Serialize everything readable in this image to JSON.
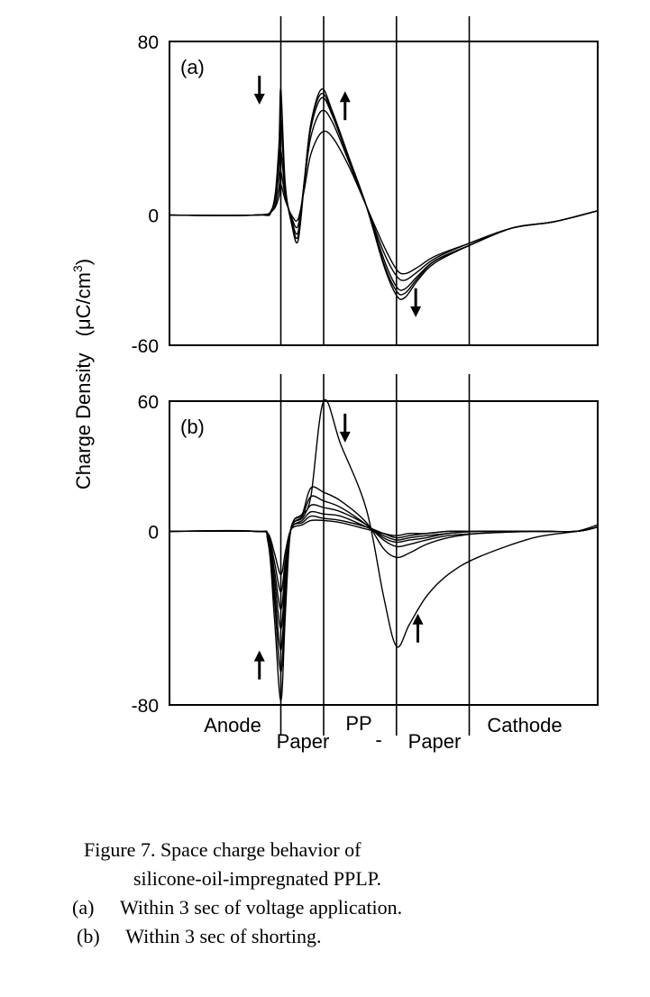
{
  "ylabel": "Charge Density",
  "yunit_prefix": "(μC/cm",
  "yunit_exp": "3",
  "yunit_suffix": ")",
  "region_labels": {
    "anode": "Anode",
    "paper1": "Paper",
    "pp": "PP",
    "dash": "-",
    "paper2": "Paper",
    "cathode": "Cathode"
  },
  "caption": {
    "line1": "Figure 7.   Space charge behavior of",
    "line2": "silicone-oil-impregnated PPLP.",
    "line3_tag": "(a)",
    "line3_text": "Within 3 sec of voltage application.",
    "line4_tag": "(b)",
    "line4_text": "Within 3 sec of shorting."
  },
  "chart_data": [
    {
      "type": "line",
      "panel": "(a)",
      "ylim": [
        -60,
        80
      ],
      "yticks": [
        "80",
        "0",
        "-60"
      ],
      "xlim": [
        0,
        1
      ],
      "x_boundaries": [
        0.26,
        0.36,
        0.53,
        0.7
      ],
      "arrows": [
        {
          "x": 0.21,
          "y": 58,
          "dir": "down"
        },
        {
          "x": 0.41,
          "y": 50,
          "dir": "up"
        },
        {
          "x": 0.575,
          "y": -40,
          "dir": "down"
        }
      ],
      "series": [
        {
          "x": [
            0,
            0.2,
            0.24,
            0.255,
            0.26,
            0.27,
            0.285,
            0.3,
            0.315,
            0.33,
            0.355,
            0.38,
            0.42,
            0.46,
            0.5,
            0.53,
            0.55,
            0.58,
            0.62,
            0.7,
            0.8,
            0.9,
            1.0
          ],
          "values": [
            0,
            0,
            3,
            30,
            58,
            15,
            -4,
            -12,
            15,
            42,
            58,
            48,
            26,
            4,
            -23,
            -37,
            -38,
            -30,
            -22,
            -14,
            -6,
            -3,
            2
          ]
        },
        {
          "x": [
            0,
            0.2,
            0.24,
            0.255,
            0.26,
            0.27,
            0.285,
            0.3,
            0.315,
            0.33,
            0.355,
            0.38,
            0.42,
            0.46,
            0.5,
            0.53,
            0.55,
            0.58,
            0.62,
            0.7,
            0.8,
            0.9,
            1.0
          ],
          "values": [
            0,
            0,
            3,
            25,
            44,
            13,
            -3,
            -10,
            16,
            42,
            56,
            47,
            26,
            4,
            -22,
            -35,
            -36,
            -29,
            -21,
            -14,
            -6,
            -3,
            2
          ]
        },
        {
          "x": [
            0,
            0.2,
            0.24,
            0.255,
            0.26,
            0.27,
            0.285,
            0.3,
            0.315,
            0.33,
            0.355,
            0.38,
            0.42,
            0.46,
            0.5,
            0.53,
            0.55,
            0.58,
            0.62,
            0.7,
            0.8,
            0.9,
            1.0
          ],
          "values": [
            0,
            0,
            3,
            18,
            30,
            11,
            -2,
            -8,
            16,
            40,
            54,
            46,
            25,
            4,
            -20,
            -33,
            -34,
            -28,
            -21,
            -14,
            -6,
            -3,
            2
          ]
        },
        {
          "x": [
            0,
            0.2,
            0.24,
            0.255,
            0.26,
            0.27,
            0.285,
            0.3,
            0.315,
            0.33,
            0.355,
            0.38,
            0.42,
            0.46,
            0.5,
            0.53,
            0.55,
            0.58,
            0.62,
            0.7,
            0.8,
            0.9,
            1.0
          ],
          "values": [
            0,
            0,
            2,
            12,
            20,
            9,
            -1,
            -5,
            15,
            36,
            48,
            43,
            24,
            4,
            -17,
            -28,
            -30,
            -26,
            -20,
            -13,
            -6,
            -3,
            2
          ]
        },
        {
          "x": [
            0,
            0.2,
            0.24,
            0.255,
            0.26,
            0.27,
            0.285,
            0.3,
            0.315,
            0.33,
            0.355,
            0.38,
            0.42,
            0.46,
            0.5,
            0.53,
            0.55,
            0.58,
            0.62,
            0.7,
            0.8,
            0.9,
            1.0
          ],
          "values": [
            0,
            0,
            2,
            8,
            14,
            7,
            0,
            -2,
            12,
            28,
            38,
            36,
            22,
            4,
            -14,
            -25,
            -27,
            -24,
            -19,
            -13,
            -6,
            -3,
            2
          ]
        }
      ]
    },
    {
      "type": "line",
      "panel": "(b)",
      "ylim": [
        -80,
        60
      ],
      "yticks": [
        "60",
        "0",
        "-80"
      ],
      "xlim": [
        0,
        1
      ],
      "x_boundaries": [
        0.26,
        0.36,
        0.53,
        0.7
      ],
      "arrows": [
        {
          "x": 0.41,
          "y": 48,
          "dir": "down"
        },
        {
          "x": 0.21,
          "y": -62,
          "dir": "up"
        },
        {
          "x": 0.58,
          "y": -45,
          "dir": "up"
        }
      ],
      "series": [
        {
          "x": [
            0,
            0.2,
            0.23,
            0.245,
            0.26,
            0.27,
            0.28,
            0.29,
            0.31,
            0.33,
            0.36,
            0.4,
            0.46,
            0.5,
            0.53,
            0.56,
            0.6,
            0.65,
            0.72,
            0.85,
            0.95,
            1.0
          ],
          "values": [
            0,
            0,
            -5,
            -40,
            -78,
            -40,
            -5,
            5,
            8,
            16,
            60,
            40,
            10,
            -30,
            -53,
            -43,
            -30,
            -20,
            -12,
            -3,
            0,
            3
          ]
        },
        {
          "x": [
            0,
            0.2,
            0.23,
            0.245,
            0.26,
            0.27,
            0.28,
            0.29,
            0.31,
            0.33,
            0.36,
            0.4,
            0.46,
            0.5,
            0.53,
            0.56,
            0.6,
            0.65,
            0.72,
            0.85,
            0.95,
            1.0
          ],
          "values": [
            0,
            0,
            -4,
            -32,
            -65,
            -32,
            -4,
            5,
            8,
            20,
            18,
            14,
            4,
            -8,
            -12,
            -10,
            -6,
            -3,
            -1,
            0,
            0,
            2
          ]
        },
        {
          "x": [
            0,
            0.2,
            0.23,
            0.245,
            0.26,
            0.27,
            0.28,
            0.29,
            0.31,
            0.33,
            0.36,
            0.4,
            0.46,
            0.5,
            0.53,
            0.56,
            0.6,
            0.65,
            0.72,
            0.85,
            0.95,
            1.0
          ],
          "values": [
            0,
            0,
            -3,
            -27,
            -55,
            -27,
            -3,
            4,
            7,
            16,
            14,
            11,
            3,
            -4,
            -7,
            -6,
            -4,
            -2,
            -1,
            0,
            0,
            2
          ]
        },
        {
          "x": [
            0,
            0.2,
            0.23,
            0.245,
            0.26,
            0.27,
            0.28,
            0.29,
            0.31,
            0.33,
            0.36,
            0.4,
            0.46,
            0.5,
            0.53,
            0.56,
            0.6,
            0.65,
            0.72,
            0.85,
            0.95,
            1.0
          ],
          "values": [
            0,
            0,
            -3,
            -22,
            -45,
            -22,
            -3,
            4,
            6,
            12,
            11,
            9,
            3,
            -3,
            -5,
            -4,
            -3,
            -1,
            0,
            0,
            0,
            2
          ]
        },
        {
          "x": [
            0,
            0.2,
            0.23,
            0.245,
            0.26,
            0.27,
            0.28,
            0.29,
            0.31,
            0.33,
            0.36,
            0.4,
            0.46,
            0.5,
            0.53,
            0.56,
            0.6,
            0.65,
            0.72,
            0.85,
            0.95,
            1.0
          ],
          "values": [
            0,
            0,
            -2,
            -18,
            -36,
            -18,
            -2,
            3,
            5,
            9,
            8,
            7,
            2,
            -2,
            -4,
            -3,
            -2,
            -1,
            0,
            0,
            0,
            2
          ]
        },
        {
          "x": [
            0,
            0.2,
            0.23,
            0.245,
            0.26,
            0.27,
            0.28,
            0.29,
            0.31,
            0.33,
            0.36,
            0.4,
            0.46,
            0.5,
            0.53,
            0.56,
            0.6,
            0.65,
            0.72,
            0.85,
            0.95,
            1.0
          ],
          "values": [
            0,
            0,
            -2,
            -14,
            -28,
            -14,
            -2,
            3,
            4,
            7,
            6,
            5,
            2,
            -1,
            -3,
            -2,
            -1,
            0,
            0,
            0,
            0,
            2
          ]
        },
        {
          "x": [
            0,
            0.2,
            0.23,
            0.245,
            0.26,
            0.27,
            0.28,
            0.29,
            0.31,
            0.33,
            0.36,
            0.4,
            0.46,
            0.5,
            0.53,
            0.56,
            0.6,
            0.65,
            0.72,
            0.85,
            0.95,
            1.0
          ],
          "values": [
            0,
            0,
            -1,
            -10,
            -20,
            -10,
            -1,
            2,
            3,
            5,
            5,
            4,
            1,
            -1,
            -2,
            -1,
            -1,
            0,
            0,
            0,
            0,
            2
          ]
        }
      ]
    }
  ]
}
